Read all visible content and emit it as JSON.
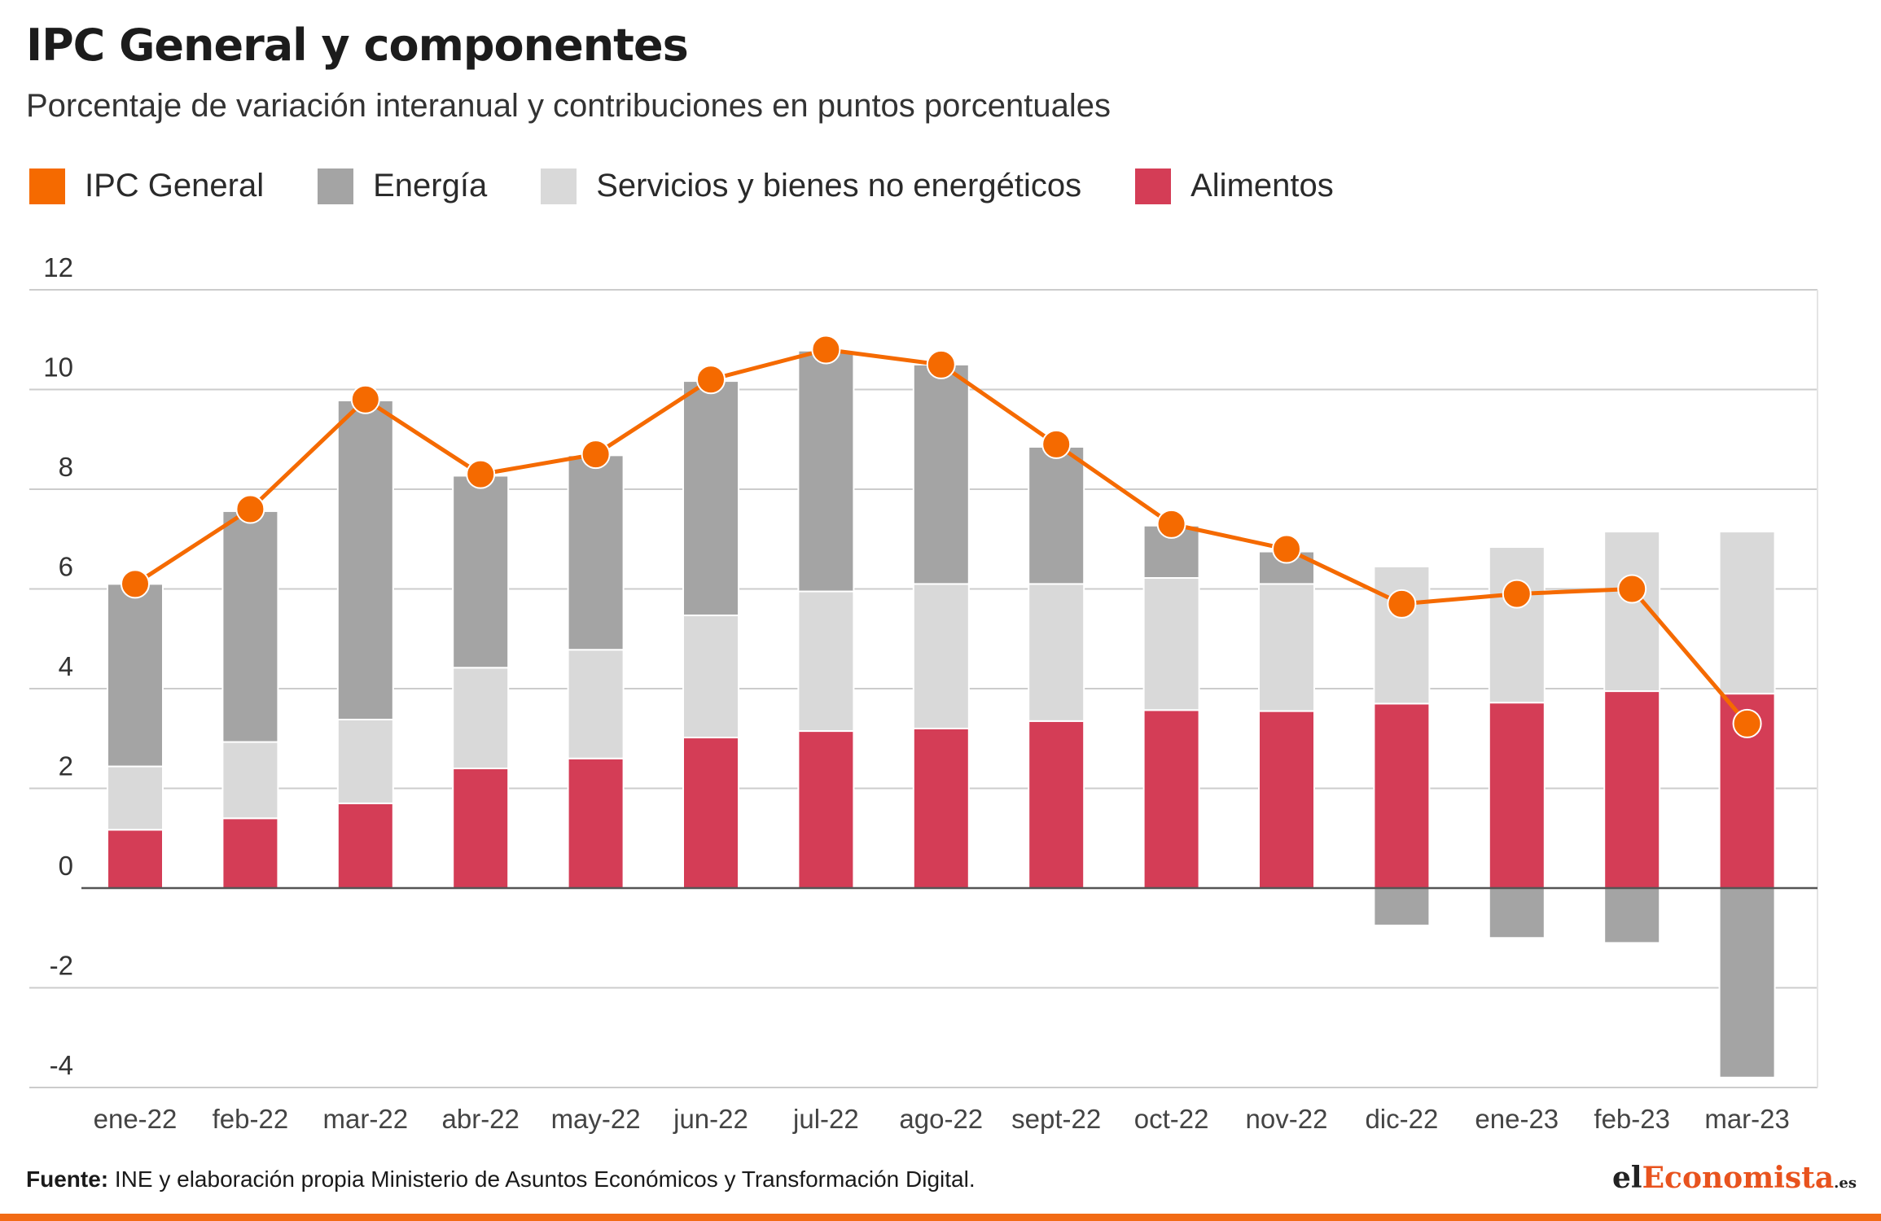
{
  "header": {
    "title": "IPC General y componentes",
    "subtitle": "Porcentaje de variación interanual y contribuciones en puntos porcentuales"
  },
  "footer": {
    "source_label": "Fuente:",
    "source_text": "INE y elaboración propia Ministerio de Asuntos Económicos y Transformación Digital."
  },
  "brand": {
    "part1": "el",
    "part2": "Economista",
    "part3": ".es"
  },
  "colors": {
    "ipc": "#f56a00",
    "energia": "#a4a4a4",
    "servicios": "#d9d9d9",
    "alimentos": "#d43d56",
    "grid": "#cccccc",
    "axis": "#555555"
  },
  "chart_data": {
    "type": "bar",
    "stacked": true,
    "title": "IPC General y componentes",
    "subtitle": "Porcentaje de variación interanual y contribuciones en puntos porcentuales",
    "categories": [
      "ene-22",
      "feb-22",
      "mar-22",
      "abr-22",
      "may-22",
      "jun-22",
      "jul-22",
      "ago-22",
      "sept-22",
      "oct-22",
      "nov-22",
      "dic-22",
      "ene-23",
      "feb-23",
      "mar-23"
    ],
    "ylim": [
      -4,
      12
    ],
    "yticks": [
      12,
      10,
      8,
      6,
      4,
      2,
      0,
      -2,
      -4
    ],
    "grid": true,
    "legend_position": "top-left",
    "series": [
      {
        "name": "Alimentos",
        "kind": "bar",
        "color": "#d43d56",
        "values": [
          1.17,
          1.4,
          1.7,
          2.4,
          2.6,
          3.02,
          3.15,
          3.2,
          3.35,
          3.57,
          3.55,
          3.7,
          3.72,
          3.95,
          3.9
        ]
      },
      {
        "name": "Servicios y bienes no energéticos",
        "kind": "bar",
        "color": "#d9d9d9",
        "values": [
          1.27,
          1.53,
          1.68,
          2.02,
          2.18,
          2.45,
          2.8,
          2.9,
          2.75,
          2.65,
          2.55,
          2.75,
          3.12,
          3.2,
          3.25
        ]
      },
      {
        "name": "Energía",
        "kind": "bar",
        "color": "#a4a4a4",
        "values": [
          3.66,
          4.63,
          6.4,
          3.85,
          3.9,
          4.7,
          4.83,
          4.4,
          2.75,
          1.05,
          0.65,
          -0.75,
          -1.0,
          -1.1,
          -3.8
        ]
      },
      {
        "name": "IPC General",
        "kind": "line",
        "color": "#f56a00",
        "values": [
          6.1,
          7.6,
          9.8,
          8.3,
          8.7,
          10.2,
          10.8,
          10.5,
          8.9,
          7.3,
          6.8,
          5.7,
          5.9,
          6.0,
          3.3
        ]
      }
    ]
  }
}
